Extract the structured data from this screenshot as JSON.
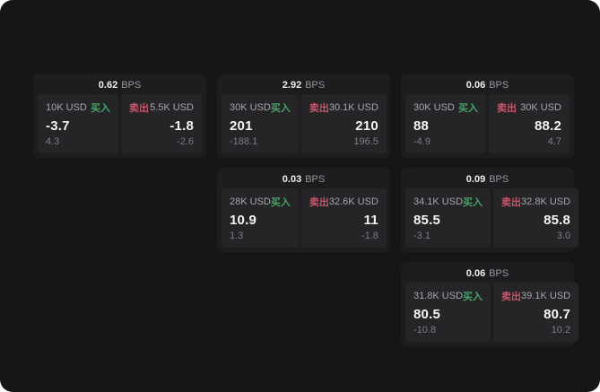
{
  "colors": {
    "buy_green": "#45a368",
    "sell_red": "#c9546a",
    "screen_bg": "#161618",
    "card_bg": "#1d1d1f",
    "panel_bg": "#252528"
  },
  "cards": [
    {
      "bps": "0.62",
      "unit": "BPS",
      "buy": {
        "amount": "10K USD",
        "label": "买入",
        "value": "-3.7",
        "sub": "4.3"
      },
      "sell": {
        "label": "卖出",
        "amount": "5.5K USD",
        "value": "-1.8",
        "sub": "-2.6"
      }
    },
    {
      "bps": "2.92",
      "unit": "BPS",
      "buy": {
        "amount": "30K USD",
        "label": "买入",
        "value": "201",
        "sub": "-188.1"
      },
      "sell": {
        "label": "卖出",
        "amount": "30.1K USD",
        "value": "210",
        "sub": "196.5"
      }
    },
    {
      "bps": "0.06",
      "unit": "BPS",
      "buy": {
        "amount": "30K USD",
        "label": "买入",
        "value": "88",
        "sub": "-4.9"
      },
      "sell": {
        "label": "卖出",
        "amount": "30K USD",
        "value": "88.2",
        "sub": "4.7"
      }
    },
    {
      "bps": "0.03",
      "unit": "BPS",
      "buy": {
        "amount": "28K USD",
        "label": "买入",
        "value": "10.9",
        "sub": "1.3"
      },
      "sell": {
        "label": "卖出",
        "amount": "32.6K USD",
        "value": "11",
        "sub": "-1.8"
      }
    },
    {
      "bps": "0.09",
      "unit": "BPS",
      "buy": {
        "amount": "34.1K USD",
        "label": "买入",
        "value": "85.5",
        "sub": "-3.1"
      },
      "sell": {
        "label": "卖出",
        "amount": "32.8K USD",
        "value": "85.8",
        "sub": "3.0"
      }
    },
    {
      "bps": "0.06",
      "unit": "BPS",
      "buy": {
        "amount": "31.8K USD",
        "label": "买入",
        "value": "80.5",
        "sub": "-10.8"
      },
      "sell": {
        "label": "卖出",
        "amount": "39.1K USD",
        "value": "80.7",
        "sub": "10.2"
      }
    }
  ]
}
